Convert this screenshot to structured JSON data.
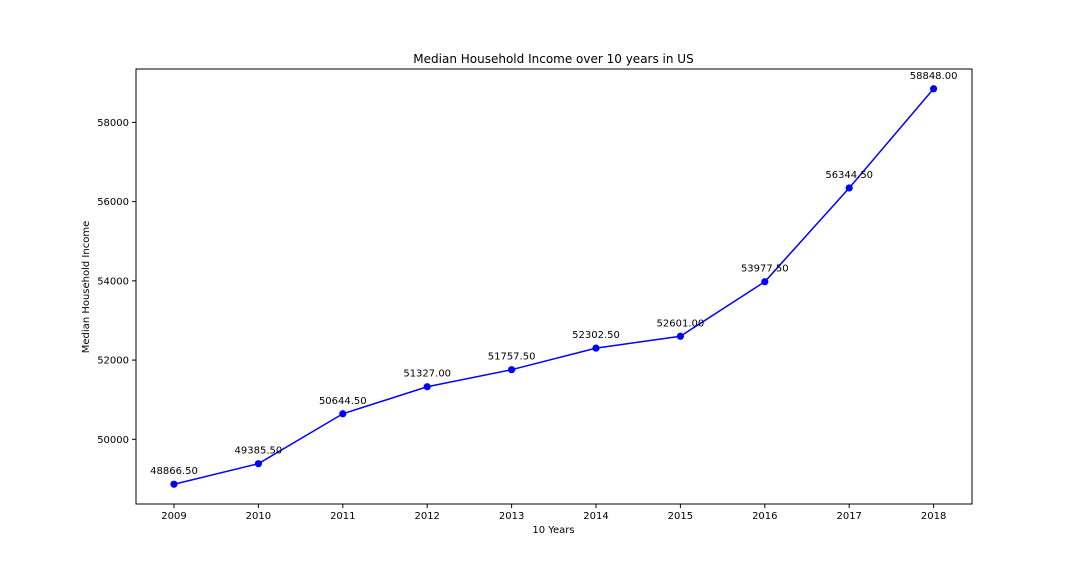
{
  "chart_data": {
    "type": "line",
    "title": "Median Household Income over 10 years in US",
    "xlabel": "10 Years",
    "ylabel": "Median Household Income",
    "x": [
      "2009",
      "2010",
      "2011",
      "2012",
      "2013",
      "2014",
      "2015",
      "2016",
      "2017",
      "2018"
    ],
    "series": [
      {
        "values": [
          48866.5,
          49385.5,
          50644.5,
          51327.0,
          51757.5,
          52302.5,
          52601.0,
          53977.5,
          56344.5,
          58848.0
        ],
        "color": "#0000ff",
        "marker": "circle"
      }
    ],
    "data_labels": [
      "48866.50",
      "49385.50",
      "50644.50",
      "51327.00",
      "51757.50",
      "52302.50",
      "52601.00",
      "53977.50",
      "56344.50",
      "58848.00"
    ],
    "yticks": [
      50000,
      52000,
      54000,
      56000,
      58000
    ],
    "ylim": [
      48367.4,
      59347.1
    ],
    "grid": false,
    "legend": "none"
  }
}
